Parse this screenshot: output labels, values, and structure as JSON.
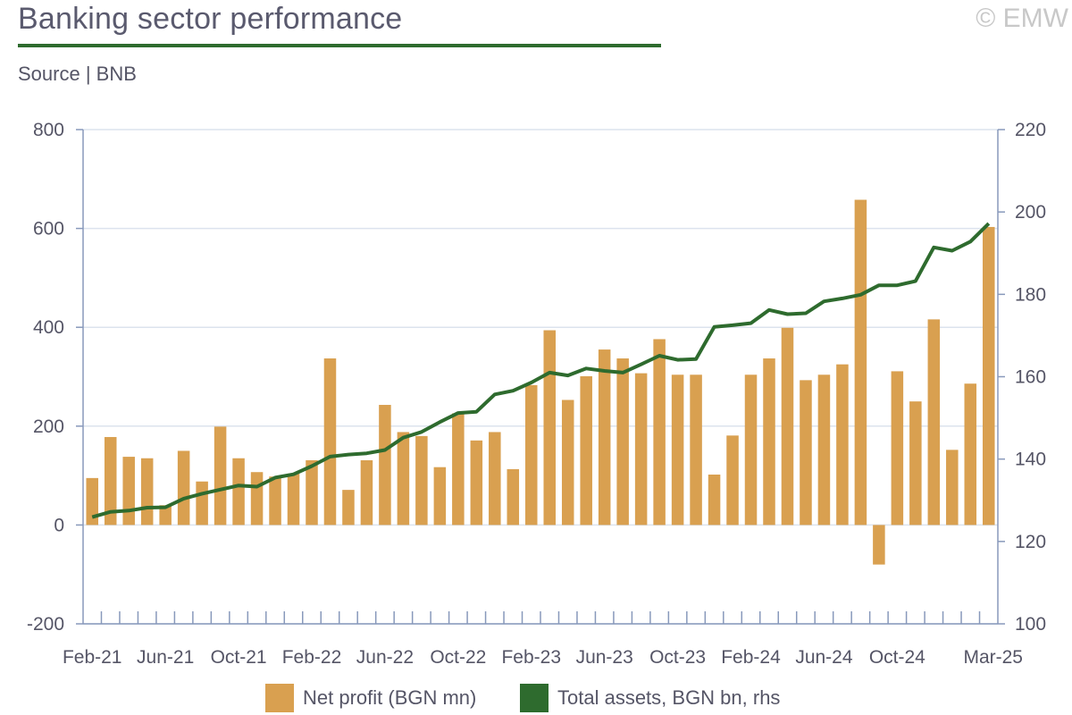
{
  "header": {
    "title": "Banking sector performance",
    "copyright": "© EMW",
    "source": "Source | BNB"
  },
  "colors": {
    "bar": "#D9A050",
    "line": "#2E6B2E",
    "axis": "#8899BB",
    "grid": "#DCE3EE"
  },
  "chart_data": {
    "type": "bar",
    "categories": [
      "Feb-21",
      "Mar-21",
      "Apr-21",
      "May-21",
      "Jun-21",
      "Jul-21",
      "Aug-21",
      "Sep-21",
      "Oct-21",
      "Nov-21",
      "Dec-21",
      "Jan-22",
      "Feb-22",
      "Mar-22",
      "Apr-22",
      "May-22",
      "Jun-22",
      "Jul-22",
      "Aug-22",
      "Sep-22",
      "Oct-22",
      "Nov-22",
      "Dec-22",
      "Jan-23",
      "Feb-23",
      "Mar-23",
      "Apr-23",
      "May-23",
      "Jun-23",
      "Jul-23",
      "Aug-23",
      "Sep-23",
      "Oct-23",
      "Nov-23",
      "Dec-23",
      "Jan-24",
      "Feb-24",
      "Mar-24",
      "Apr-24",
      "May-24",
      "Jun-24",
      "Jul-24",
      "Aug-24",
      "Sep-24",
      "Oct-24",
      "Nov-24",
      "Dec-24",
      "Jan-25",
      "Feb-25",
      "Mar-25"
    ],
    "x_tick_labels": [
      "Feb-21",
      "Jun-21",
      "Oct-21",
      "Feb-22",
      "Jun-22",
      "Oct-22",
      "Feb-23",
      "Jun-23",
      "Oct-23",
      "Feb-24",
      "Jun-24",
      "Oct-24",
      "Mar-25"
    ],
    "series": [
      {
        "name": "Net profit (BGN mn)",
        "type": "bar",
        "axis": "left",
        "values": [
          95,
          178,
          138,
          135,
          40,
          150,
          88,
          199,
          135,
          107,
          98,
          104,
          131,
          337,
          71,
          131,
          243,
          188,
          180,
          117,
          226,
          171,
          188,
          113,
          283,
          394,
          253,
          301,
          355,
          337,
          307,
          376,
          304,
          304,
          102,
          181,
          304,
          337,
          399,
          293,
          304,
          325,
          658,
          -80,
          311,
          250,
          416,
          152,
          286,
          603
        ]
      },
      {
        "name": "Total assets, BGN bn, rhs",
        "type": "line",
        "axis": "right",
        "values": [
          125.9,
          127.2,
          127.5,
          128.2,
          128.3,
          130.4,
          131.6,
          132.6,
          133.6,
          133.3,
          135.5,
          136.3,
          138.3,
          140.6,
          141.1,
          141.4,
          142.2,
          145.2,
          146.6,
          149.0,
          151.2,
          151.5,
          155.7,
          156.6,
          158.6,
          161.0,
          160.3,
          162.0,
          161.4,
          161.0,
          163.0,
          165.1,
          164.1,
          164.3,
          172.1,
          172.5,
          173.0,
          176.2,
          175.2,
          175.4,
          178.3,
          179.0,
          179.9,
          182.2,
          182.2,
          183.2,
          191.4,
          190.6,
          192.8,
          197.2
        ]
      }
    ],
    "y_left": {
      "ylim": [
        -200,
        800
      ],
      "ticks": [
        "-200",
        "0",
        "200",
        "400",
        "600",
        "800"
      ]
    },
    "y_right": {
      "ylim": [
        100,
        220
      ],
      "ticks": [
        "100",
        "120",
        "140",
        "160",
        "180",
        "200",
        "220"
      ]
    },
    "grid": true,
    "legend_position": "bottom-center"
  }
}
